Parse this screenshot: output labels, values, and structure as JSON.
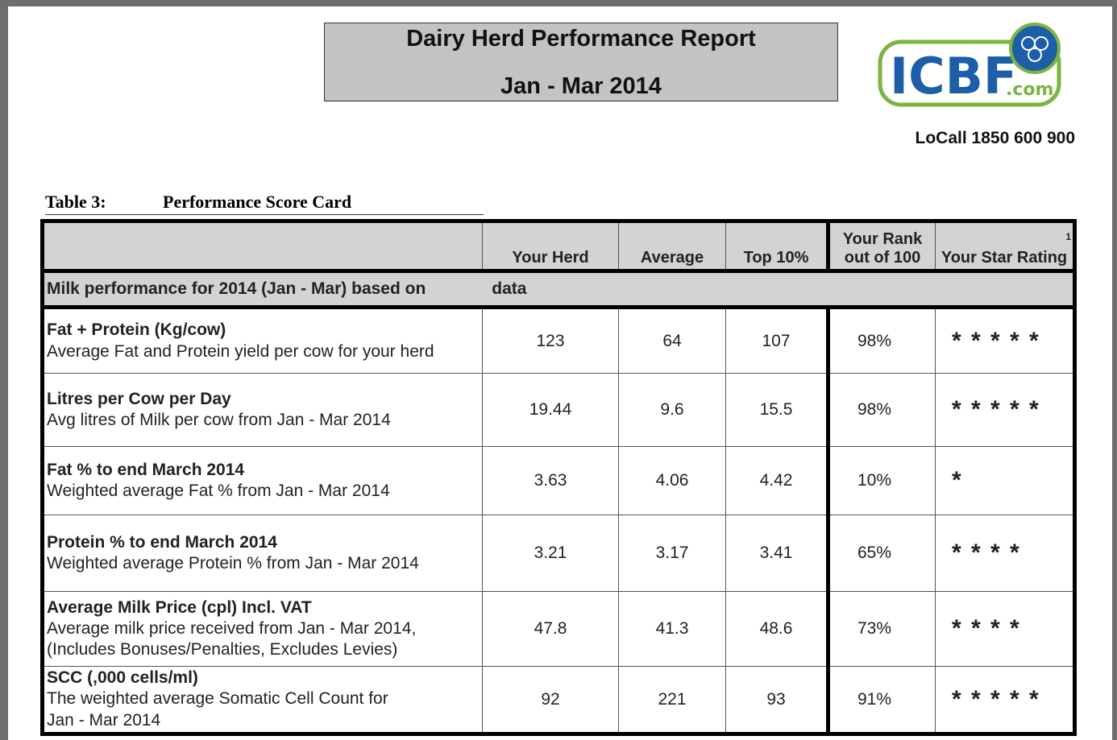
{
  "header": {
    "title": "Dairy Herd Performance Report",
    "subtitle": "Jan - Mar 2014",
    "logo": "ICBF",
    "logo_suffix": ".com",
    "phone": "LoCall 1850 600 900"
  },
  "table": {
    "caption_label": "Table 3:",
    "caption_title": "Performance Score Card",
    "columns": [
      "Your Herd",
      "Average",
      "Top 10%",
      "Your Rank out of 100",
      "Your Star Rating"
    ],
    "footnote_mark": "1",
    "section": "Milk performance for 2014 (Jan - Mar) based on",
    "section_suffix": "data",
    "rows": [
      {
        "title": "Fat + Protein (Kg/cow)",
        "description": [
          "Average Fat and Protein yield per cow for your herd"
        ],
        "your_herd": "123",
        "average": "64",
        "top_10": "107",
        "rank": "98%",
        "stars": "* * * * *"
      },
      {
        "title": "Litres per Cow per Day",
        "description": [
          "Avg litres of Milk per cow from Jan - Mar 2014"
        ],
        "your_herd": "19.44",
        "average": "9.6",
        "top_10": "15.5",
        "rank": "98%",
        "stars": "* * * * *"
      },
      {
        "title": "Fat % to end March 2014",
        "description": [
          "Weighted average Fat % from Jan - Mar 2014"
        ],
        "your_herd": "3.63",
        "average": "4.06",
        "top_10": "4.42",
        "rank": "10%",
        "stars": "*"
      },
      {
        "title": "Protein % to end March 2014",
        "description": [
          "Weighted average Protein % from Jan - Mar 2014"
        ],
        "your_herd": "3.21",
        "average": "3.17",
        "top_10": "3.41",
        "rank": "65%",
        "stars": "* * * *"
      },
      {
        "title": "Average Milk Price (cpl) Incl. VAT",
        "description": [
          "Average milk price received from Jan - Mar 2014,",
          "(Includes Bonuses/Penalties, Excludes Levies)"
        ],
        "your_herd": "47.8",
        "average": "41.3",
        "top_10": "48.6",
        "rank": "73%",
        "stars": "* * * *"
      },
      {
        "title": "SCC (,000 cells/ml)",
        "description": [
          "The weighted average Somatic Cell Count for",
          "Jan - Mar 2014"
        ],
        "your_herd": "92",
        "average": "221",
        "top_10": "93",
        "rank": "91%",
        "stars": "* * * * *"
      }
    ]
  }
}
